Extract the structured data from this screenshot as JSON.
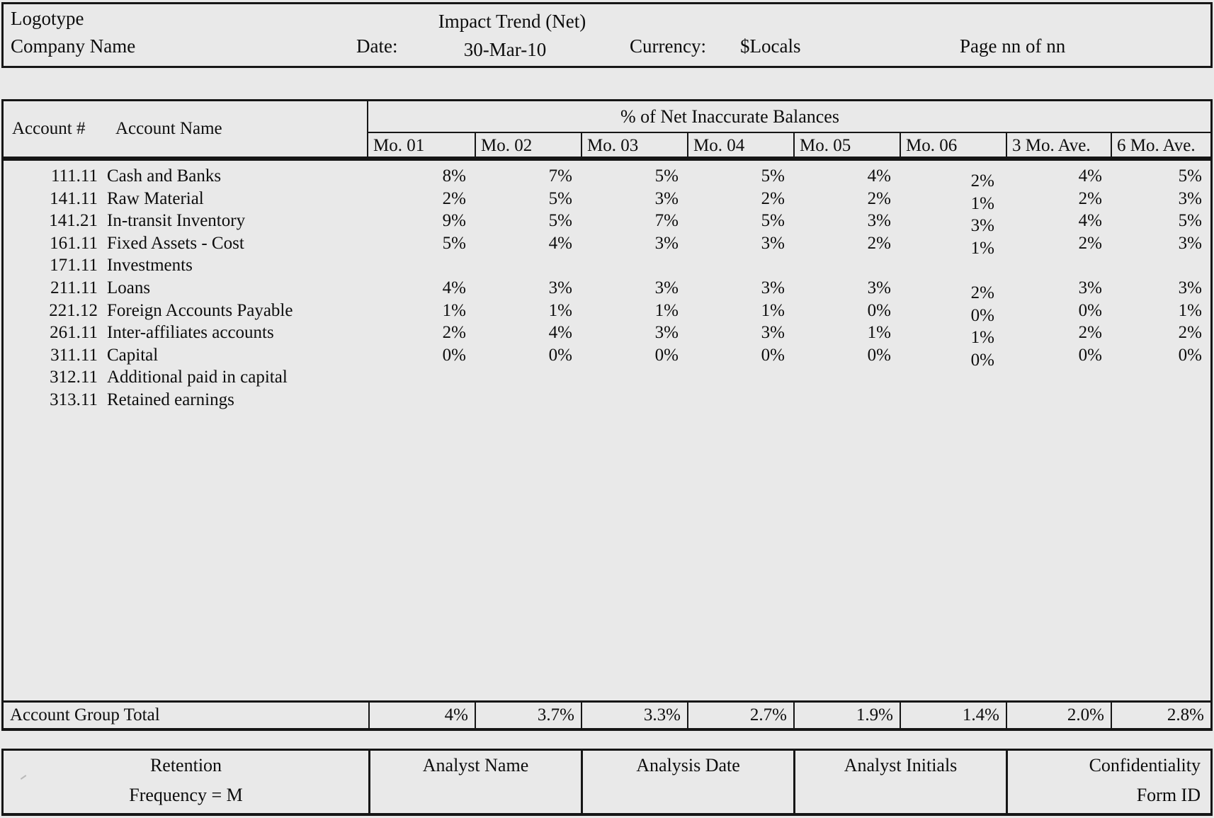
{
  "header": {
    "logotype": "Logotype",
    "company_name": "Company Name",
    "title": "Impact Trend (Net)",
    "date_label": "Date:",
    "date_value": "30-Mar-10",
    "currency_label": "Currency:",
    "currency_value": "$Locals",
    "page_label": "Page nn of nn"
  },
  "table": {
    "account_number_header": "Account #",
    "account_name_header": "Account Name",
    "group_header": "% of Net Inaccurate Balances",
    "columns": [
      "Mo. 01",
      "Mo. 02",
      "Mo. 03",
      "Mo. 04",
      "Mo. 05",
      "Mo. 06",
      "3 Mo. Ave.",
      "6 Mo. Ave."
    ],
    "rows": [
      {
        "number": "111.11",
        "name": "Cash and Banks",
        "values": [
          "8%",
          "7%",
          "5%",
          "5%",
          "4%",
          "2%",
          "4%",
          "5%"
        ]
      },
      {
        "number": "141.11",
        "name": "Raw Material",
        "values": [
          "2%",
          "5%",
          "3%",
          "2%",
          "2%",
          "1%",
          "2%",
          "3%"
        ]
      },
      {
        "number": "141.21",
        "name": "In-transit Inventory",
        "values": [
          "9%",
          "5%",
          "7%",
          "5%",
          "3%",
          "3%",
          "4%",
          "5%"
        ]
      },
      {
        "number": "161.11",
        "name": "Fixed Assets - Cost",
        "values": [
          "5%",
          "4%",
          "3%",
          "3%",
          "2%",
          "1%",
          "2%",
          "3%"
        ]
      },
      {
        "number": "171.11",
        "name": "Investments",
        "values": [
          "",
          "",
          "",
          "",
          "",
          "",
          "",
          ""
        ]
      },
      {
        "number": "211.11",
        "name": "Loans",
        "values": [
          "4%",
          "3%",
          "3%",
          "3%",
          "3%",
          "2%",
          "3%",
          "3%"
        ]
      },
      {
        "number": "221.12",
        "name": "Foreign Accounts Payable",
        "values": [
          "1%",
          "1%",
          "1%",
          "1%",
          "0%",
          "0%",
          "0%",
          "1%"
        ]
      },
      {
        "number": "261.11",
        "name": "Inter-affiliates accounts",
        "values": [
          "2%",
          "4%",
          "3%",
          "3%",
          "1%",
          "1%",
          "2%",
          "2%"
        ]
      },
      {
        "number": "311.11",
        "name": "Capital",
        "values": [
          "0%",
          "0%",
          "0%",
          "0%",
          "0%",
          "0%",
          "0%",
          "0%"
        ]
      },
      {
        "number": "312.11",
        "name": "Additional paid in capital",
        "values": [
          "",
          "",
          "",
          "",
          "",
          "",
          "",
          ""
        ]
      },
      {
        "number": "313.11",
        "name": "Retained earnings",
        "values": [
          "",
          "",
          "",
          "",
          "",
          "",
          "",
          ""
        ]
      }
    ],
    "totals": {
      "label": "Account Group Total",
      "values": [
        "4%",
        "3.7%",
        "3.3%",
        "2.7%",
        "1.9%",
        "1.4%",
        "2.0%",
        "2.8%"
      ]
    }
  },
  "footer": {
    "retention_line1": "Retention",
    "retention_line2": "Frequency = M",
    "analyst_name_label": "Analyst Name",
    "analysis_date_label": "Analysis Date",
    "analyst_initials_label": "Analyst Initials",
    "confidentiality_label": "Confidentiality",
    "form_id_label": "Form ID"
  },
  "colors": {
    "background": "#e9e9e9",
    "border": "#161616",
    "text": "#0d0d0d"
  }
}
